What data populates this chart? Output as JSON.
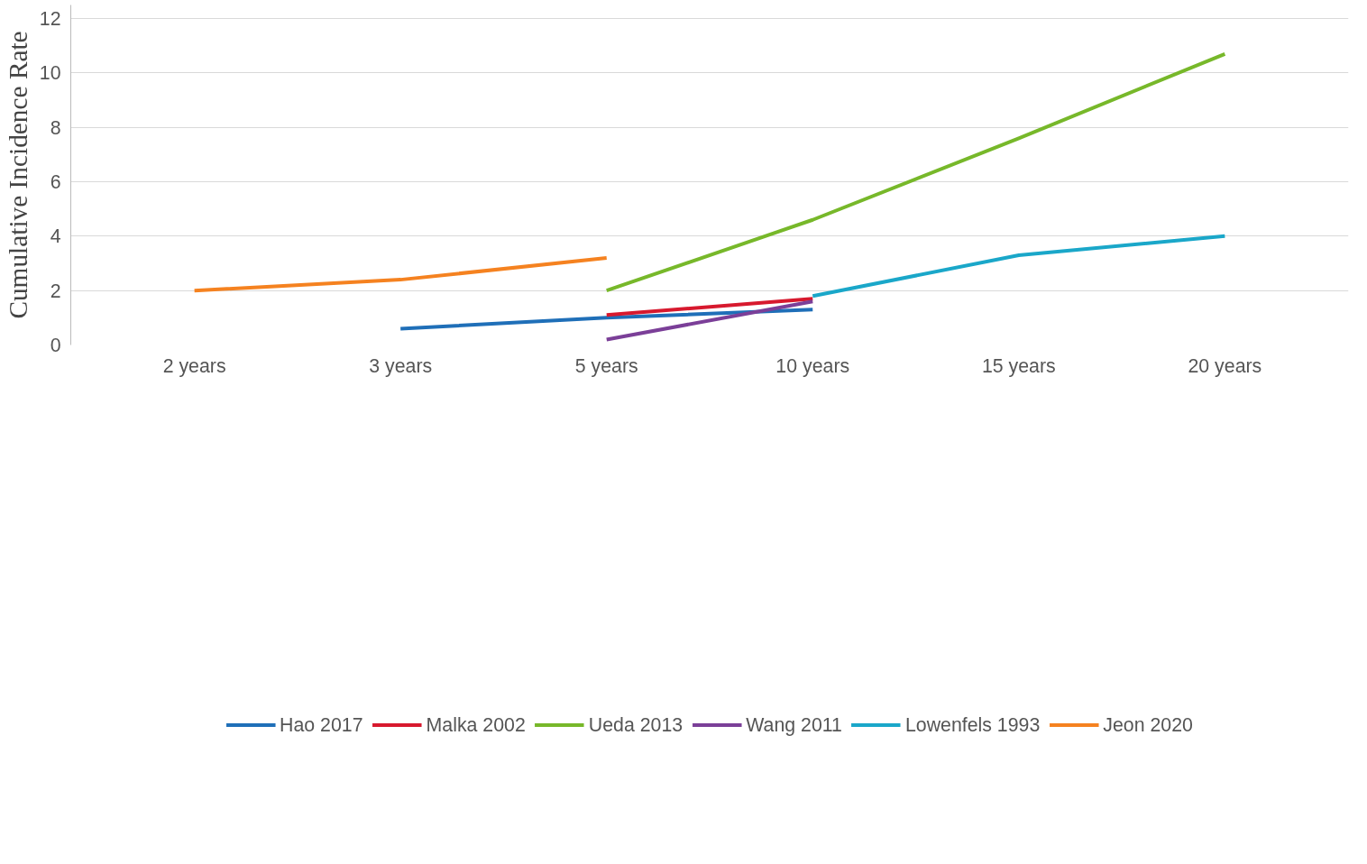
{
  "chart_data": {
    "type": "line",
    "ylabel": "Cumulative Incidence Rate",
    "categories": [
      "2 years",
      "3 years",
      "5 years",
      "10 years",
      "15 years",
      "20 years"
    ],
    "series": [
      {
        "name": "Hao 2017",
        "color": "#1f6fb8",
        "values": [
          null,
          0.6,
          1.0,
          1.3,
          null,
          null
        ]
      },
      {
        "name": "Malka 2002",
        "color": "#d7192e",
        "values": [
          null,
          null,
          1.1,
          1.7,
          null,
          null
        ]
      },
      {
        "name": "Ueda 2013",
        "color": "#77b82a",
        "values": [
          null,
          null,
          2.0,
          4.6,
          7.6,
          10.7
        ]
      },
      {
        "name": "Wang 2011",
        "color": "#7b3f98",
        "values": [
          null,
          null,
          0.2,
          1.6,
          null,
          null
        ]
      },
      {
        "name": "Lowenfels 1993",
        "color": "#1aa7c9",
        "values": [
          null,
          null,
          null,
          1.8,
          3.3,
          4.0
        ]
      },
      {
        "name": "Jeon 2020",
        "color": "#f58220",
        "values": [
          2.0,
          2.4,
          3.2,
          null,
          null,
          null
        ]
      }
    ],
    "ylim": [
      0,
      12.5
    ],
    "yticks": [
      0,
      2,
      4,
      6,
      8,
      10,
      12
    ],
    "grid": "y",
    "legend": "bottom",
    "marker": "none",
    "line_style": "solid"
  }
}
